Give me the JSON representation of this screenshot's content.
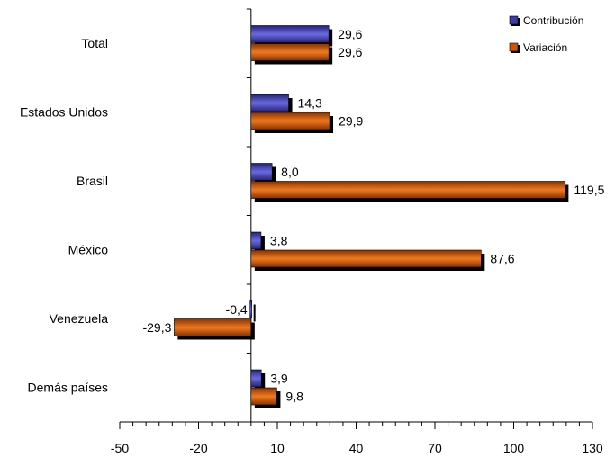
{
  "chart_data": {
    "type": "bar",
    "orientation": "horizontal",
    "categories": [
      "Total",
      "Estados Unidos",
      "Brasil",
      "México",
      "Venezuela",
      "Demás países"
    ],
    "series": [
      {
        "name": "Contribución",
        "values": [
          29.6,
          14.3,
          8.0,
          3.8,
          -0.4,
          3.9
        ],
        "labels": [
          "29,6",
          "14,3",
          "8,0",
          "3,8",
          "-0,4",
          "3,9"
        ],
        "color": "#3b3ba8"
      },
      {
        "name": "Variación",
        "values": [
          29.6,
          29.9,
          119.5,
          87.6,
          -29.3,
          9.8
        ],
        "labels": [
          "29,6",
          "29,9",
          "119,5",
          "87,6",
          "-29,3",
          "9,8"
        ],
        "color": "#cc5500"
      }
    ],
    "xlim": [
      -50,
      130
    ],
    "xticks": [
      -50,
      -20,
      10,
      40,
      70,
      100,
      130
    ],
    "xtick_labels": [
      "-50",
      "-20",
      "10",
      "40",
      "70",
      "100",
      "130"
    ],
    "legend": {
      "position": "top-right",
      "entries": [
        "Contribución",
        "Variación"
      ]
    },
    "grid": false,
    "title": "",
    "xlabel": "",
    "ylabel": ""
  }
}
